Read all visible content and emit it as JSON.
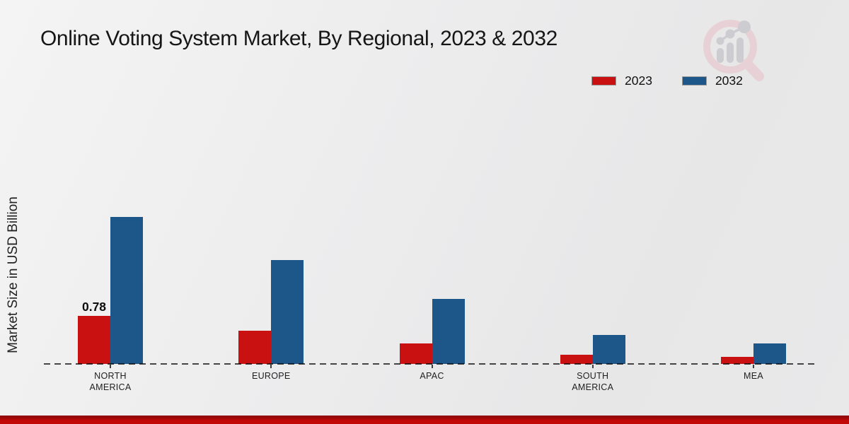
{
  "chart_data": {
    "type": "bar",
    "title": "Online Voting System Market, By Regional, 2023 & 2032",
    "xlabel": "",
    "ylabel": "Market Size in USD Billion",
    "categories": [
      "NORTH AMERICA",
      "EUROPE",
      "APAC",
      "SOUTH AMERICA",
      "MEA"
    ],
    "series": [
      {
        "name": "2023",
        "color": "#c81110",
        "values": [
          0.78,
          0.54,
          0.33,
          0.15,
          0.11
        ]
      },
      {
        "name": "2032",
        "color": "#1d5689",
        "values": [
          2.37,
          1.68,
          1.05,
          0.47,
          0.33
        ]
      }
    ],
    "ylim": [
      0,
      2.5
    ],
    "grid": false,
    "legend_position": "top-right",
    "baseline_style": "dashed",
    "bar_labels": [
      {
        "series": "2023",
        "category": "NORTH AMERICA",
        "text": "0.78"
      }
    ]
  },
  "branding": {
    "logo_icon": "magnifier-bar-chart-logo"
  },
  "footer": {
    "accent_strip_color": "#c30808"
  }
}
